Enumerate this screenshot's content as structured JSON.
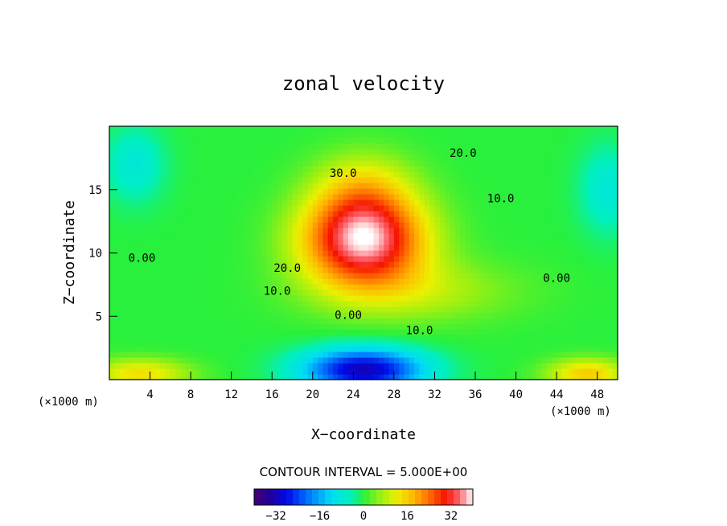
{
  "chart_data": {
    "type": "heatmap",
    "title": "zonal velocity",
    "xlabel": "X−coordinate",
    "ylabel": "Z−coordinate",
    "x_unit": "(×1000 m)",
    "y_unit": "(×1000 m)",
    "xlim": [
      0,
      50
    ],
    "ylim": [
      0,
      20
    ],
    "x_ticks": [
      4,
      8,
      12,
      16,
      20,
      24,
      28,
      32,
      36,
      40,
      44,
      48
    ],
    "y_ticks": [
      5,
      10,
      15
    ],
    "contour_interval_text": "CONTOUR INTERVAL = 5.000E+00",
    "contour_interval": 5,
    "value_range": [
      -40,
      40
    ],
    "colorbar_ticks": [
      "−32",
      "−16",
      "0",
      "16",
      "32"
    ],
    "colorbar_tick_values": [
      -32,
      -16,
      0,
      16,
      32
    ],
    "contour_labels": [
      {
        "text": "30.0",
        "x": 23,
        "z": 16
      },
      {
        "text": "20.0",
        "x": 34.8,
        "z": 17.6
      },
      {
        "text": "10.0",
        "x": 38.5,
        "z": 14
      },
      {
        "text": "0.00",
        "x": 3.2,
        "z": 9.3
      },
      {
        "text": "20.0",
        "x": 17.5,
        "z": 8.5
      },
      {
        "text": "10.0",
        "x": 16.5,
        "z": 6.7
      },
      {
        "text": "0.00",
        "x": 23.5,
        "z": 4.8
      },
      {
        "text": "10.0",
        "x": 30.5,
        "z": 3.6
      },
      {
        "text": "0.00",
        "x": 44,
        "z": 7.7
      }
    ],
    "features": [
      {
        "name": "jet-core",
        "x": 25,
        "z": 11,
        "value": 38,
        "sx": 6,
        "sz": 3.5
      },
      {
        "name": "jet-upper",
        "x": 25,
        "z": 15,
        "value": 12,
        "sx": 5,
        "sz": 3
      },
      {
        "name": "low-level-min",
        "x": 25,
        "z": 0.8,
        "value": -32,
        "sx": 6,
        "sz": 1.7
      },
      {
        "name": "upper-left-min",
        "x": 2.5,
        "z": 17,
        "value": -8,
        "sx": 3,
        "sz": 3
      },
      {
        "name": "upper-right-min",
        "x": 49,
        "z": 15,
        "value": -8,
        "sx": 2.8,
        "sz": 3.5
      },
      {
        "name": "bottom-left-max",
        "x": 3,
        "z": 0.5,
        "value": 14,
        "sx": 5,
        "sz": 1.2
      },
      {
        "name": "bottom-right-max",
        "x": 47,
        "z": 0.5,
        "value": 16,
        "sx": 4,
        "sz": 1.2
      }
    ]
  }
}
